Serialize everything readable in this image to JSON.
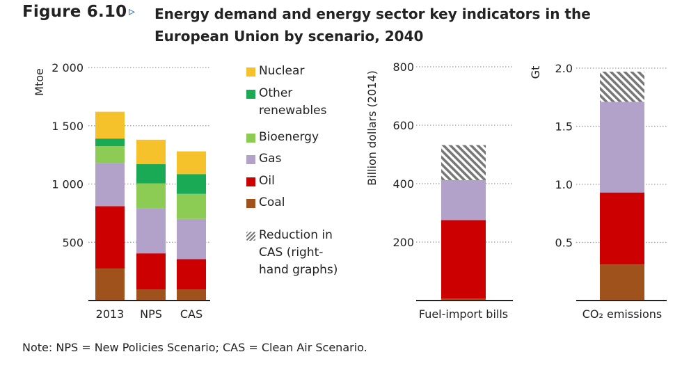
{
  "figure": {
    "label": "Figure 6.10",
    "arrow": "▹",
    "title": "Energy demand and energy sector key indicators in the European Union by scenario, 2040",
    "note": "Note: NPS = New Policies Scenario; CAS = Clean Air Scenario."
  },
  "legend": [
    {
      "label": "Nuclear",
      "color": "#f5c22b",
      "hatch": false
    },
    {
      "label": "Other renewables",
      "color": "#1aaa55",
      "hatch": false
    },
    {
      "label": "Bioenergy",
      "color": "#8ccc55",
      "hatch": false
    },
    {
      "label": "Gas",
      "color": "#b2a1c8",
      "hatch": false
    },
    {
      "label": "Oil",
      "color": "#cc0000",
      "hatch": false
    },
    {
      "label": "Coal",
      "color": "#a0521d",
      "hatch": false
    },
    {
      "label": "Reduction in CAS (right-hand graphs)",
      "color": "#777777",
      "hatch": true
    }
  ],
  "chart_data": [
    {
      "type": "bar",
      "stacked": true,
      "ylabel": "Mtoe",
      "ylim": [
        0,
        2000
      ],
      "yticks": [
        500,
        1000,
        1500,
        2000
      ],
      "ytick_labels": [
        "500",
        "1 000",
        "1 500",
        "2 000"
      ],
      "categories": [
        "2013",
        "NPS",
        "CAS"
      ],
      "series": [
        {
          "name": "Coal",
          "color": "#a0521d",
          "values": [
            275,
            95,
            95
          ]
        },
        {
          "name": "Oil",
          "color": "#cc0000",
          "values": [
            535,
            310,
            260
          ]
        },
        {
          "name": "Gas",
          "color": "#b2a1c8",
          "values": [
            370,
            385,
            345
          ]
        },
        {
          "name": "Bioenergy",
          "color": "#8ccc55",
          "values": [
            145,
            215,
            215
          ]
        },
        {
          "name": "Other renewables",
          "color": "#1aaa55",
          "values": [
            65,
            165,
            170
          ]
        },
        {
          "name": "Nuclear",
          "color": "#f5c22b",
          "values": [
            230,
            210,
            195
          ]
        }
      ],
      "grid": "dotted"
    },
    {
      "type": "bar",
      "stacked": true,
      "ylabel": "Billion dollars (2014)",
      "ylim": [
        0,
        800
      ],
      "yticks": [
        200,
        400,
        600,
        800
      ],
      "ytick_labels": [
        "200",
        "400",
        "600",
        "800"
      ],
      "categories": [
        "Fuel-import bills"
      ],
      "series": [
        {
          "name": "Coal",
          "color": "#a0521d",
          "values": [
            7
          ]
        },
        {
          "name": "Oil",
          "color": "#cc0000",
          "values": [
            268
          ]
        },
        {
          "name": "Gas",
          "color": "#b2a1c8",
          "values": [
            137
          ]
        },
        {
          "name": "Reduction in CAS",
          "color": "#777777",
          "hatch": true,
          "values": [
            120
          ]
        }
      ],
      "grid": "dotted"
    },
    {
      "type": "bar",
      "stacked": true,
      "ylabel": "Gt",
      "ylim": [
        0,
        2.0
      ],
      "yticks": [
        0.5,
        1.0,
        1.5,
        2.0
      ],
      "ytick_labels": [
        "0.5",
        "1.0",
        "1.5",
        "2.0"
      ],
      "categories": [
        "CO₂ emissions"
      ],
      "series": [
        {
          "name": "Coal",
          "color": "#a0521d",
          "values": [
            0.31
          ]
        },
        {
          "name": "Oil",
          "color": "#cc0000",
          "values": [
            0.62
          ]
        },
        {
          "name": "Gas",
          "color": "#b2a1c8",
          "values": [
            0.78
          ]
        },
        {
          "name": "Reduction in CAS",
          "color": "#777777",
          "hatch": true,
          "values": [
            0.26
          ]
        }
      ],
      "grid": "dotted"
    }
  ]
}
